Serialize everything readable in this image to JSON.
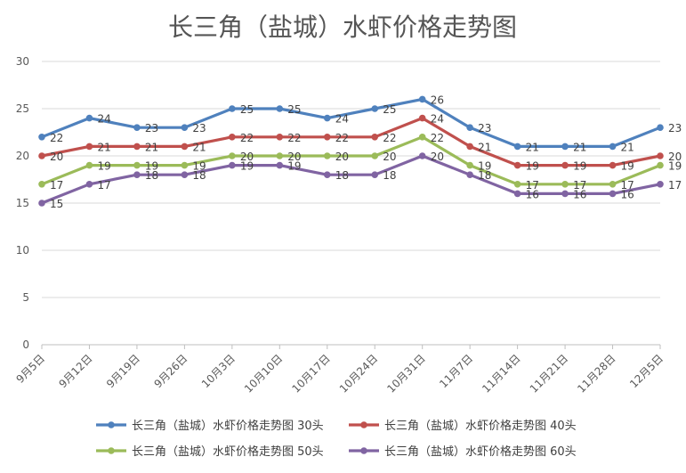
{
  "chart_data": {
    "type": "line",
    "title": "长三角（盐城）水虾价格走势图",
    "xlabel": "",
    "ylabel": "",
    "ylim": [
      0,
      30
    ],
    "yticks": [
      0,
      5,
      10,
      15,
      20,
      25,
      30
    ],
    "grid": true,
    "legend_position": "bottom",
    "categories": [
      "9月5日",
      "9月12日",
      "9月19日",
      "9月26日",
      "10月3日",
      "10月10日",
      "10月17日",
      "10月24日",
      "10月31日",
      "11月7日",
      "11月14日",
      "11月21日",
      "11月28日",
      "12月5日"
    ],
    "series": [
      {
        "name": "长三角（盐城）水虾价格走势图 30头",
        "color": "#4F81BD",
        "values": [
          22,
          24,
          23,
          23,
          25,
          25,
          24,
          25,
          26,
          23,
          21,
          21,
          21,
          23
        ]
      },
      {
        "name": "长三角（盐城）水虾价格走势图 40头",
        "color": "#C0504D",
        "values": [
          20,
          21,
          21,
          21,
          22,
          22,
          22,
          22,
          24,
          21,
          19,
          19,
          19,
          20
        ]
      },
      {
        "name": "长三角（盐城）水虾价格走势图 50头",
        "color": "#9BBB59",
        "values": [
          17,
          19,
          19,
          19,
          20,
          20,
          20,
          20,
          22,
          19,
          17,
          17,
          17,
          19
        ]
      },
      {
        "name": "长三角（盐城）水虾价格走势图 60头",
        "color": "#8064A2",
        "values": [
          15,
          17,
          18,
          18,
          19,
          19,
          18,
          18,
          20,
          18,
          16,
          16,
          16,
          17
        ]
      }
    ]
  }
}
